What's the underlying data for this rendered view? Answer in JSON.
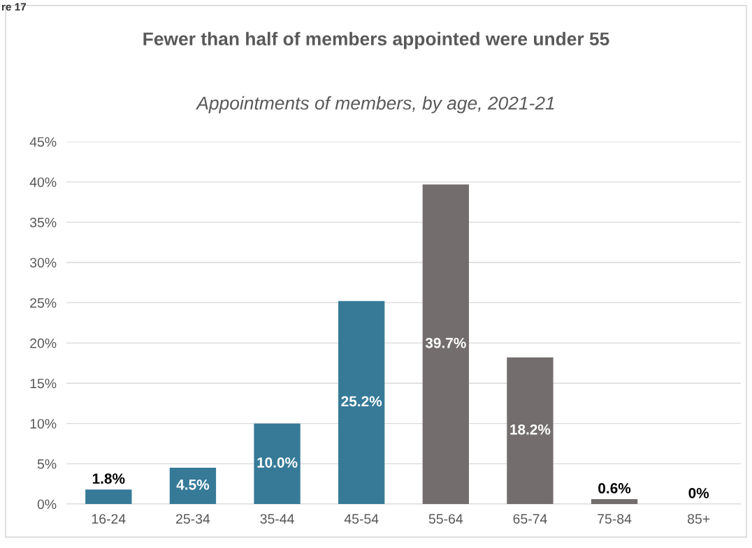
{
  "chart_data": {
    "type": "bar",
    "title": "Fewer than half of members appointed were under 55",
    "subtitle": "Appointments of members, by age, 2021-21",
    "annotations": [
      "re 17"
    ],
    "categories": [
      "16-24",
      "25-34",
      "35-44",
      "45-54",
      "55-64",
      "65-74",
      "75-84",
      "85+"
    ],
    "values": [
      1.8,
      4.5,
      10.0,
      25.2,
      39.7,
      18.2,
      0.6,
      0
    ],
    "colors": [
      "#367a98",
      "#367a98",
      "#367a98",
      "#367a98",
      "#736e6d",
      "#736e6d",
      "#736e6d",
      "#736e6d"
    ],
    "value_labels": [
      "1.8%",
      "4.5%",
      "10.0%",
      "25.2%",
      "39.7%",
      "18.2%",
      "0.6%",
      "0%"
    ],
    "ylim": [
      0,
      45
    ],
    "yticks": [
      {
        "value": 0,
        "label": "0%"
      },
      {
        "value": 5,
        "label": "5%"
      },
      {
        "value": 10,
        "label": "10%"
      },
      {
        "value": 15,
        "label": "15%"
      },
      {
        "value": 20,
        "label": "20%"
      },
      {
        "value": 25,
        "label": "25%"
      },
      {
        "value": 30,
        "label": "30%"
      },
      {
        "value": 35,
        "label": "35%"
      },
      {
        "value": 40,
        "label": "40%"
      },
      {
        "value": 45,
        "label": "45%"
      }
    ],
    "grid": "y",
    "legend": false
  }
}
